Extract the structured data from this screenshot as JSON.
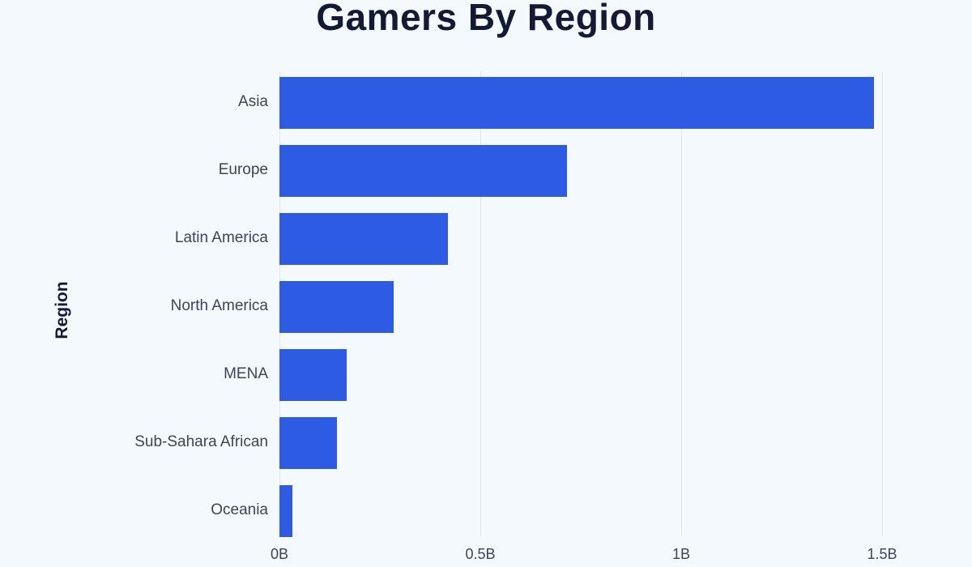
{
  "chart_data": {
    "type": "bar",
    "orientation": "horizontal",
    "title": "Gamers By Region",
    "xlabel": "",
    "ylabel": "Region",
    "categories": [
      "Asia",
      "Europe",
      "Latin America",
      "North America",
      "MENA",
      "Sub-Sahara African",
      "Oceania"
    ],
    "values": [
      1.48,
      0.716,
      0.42,
      0.284,
      0.167,
      0.143,
      0.032
    ],
    "value_unit": "billions",
    "xlim": [
      0,
      1.5
    ],
    "x_ticks": [
      "0B",
      "0.5B",
      "1B",
      "1.5B"
    ],
    "grid": "vertical",
    "legend": null,
    "bar_color": "#2d5be3"
  },
  "labels": {
    "title": "Gamers By Region",
    "ylabel": "Region",
    "categories": [
      "Asia",
      "Europe",
      "Latin America",
      "North America",
      "MENA",
      "Sub-Sahara African",
      "Oceania"
    ],
    "ticks": [
      "0B",
      "0.5B",
      "1B",
      "1.5B"
    ]
  }
}
